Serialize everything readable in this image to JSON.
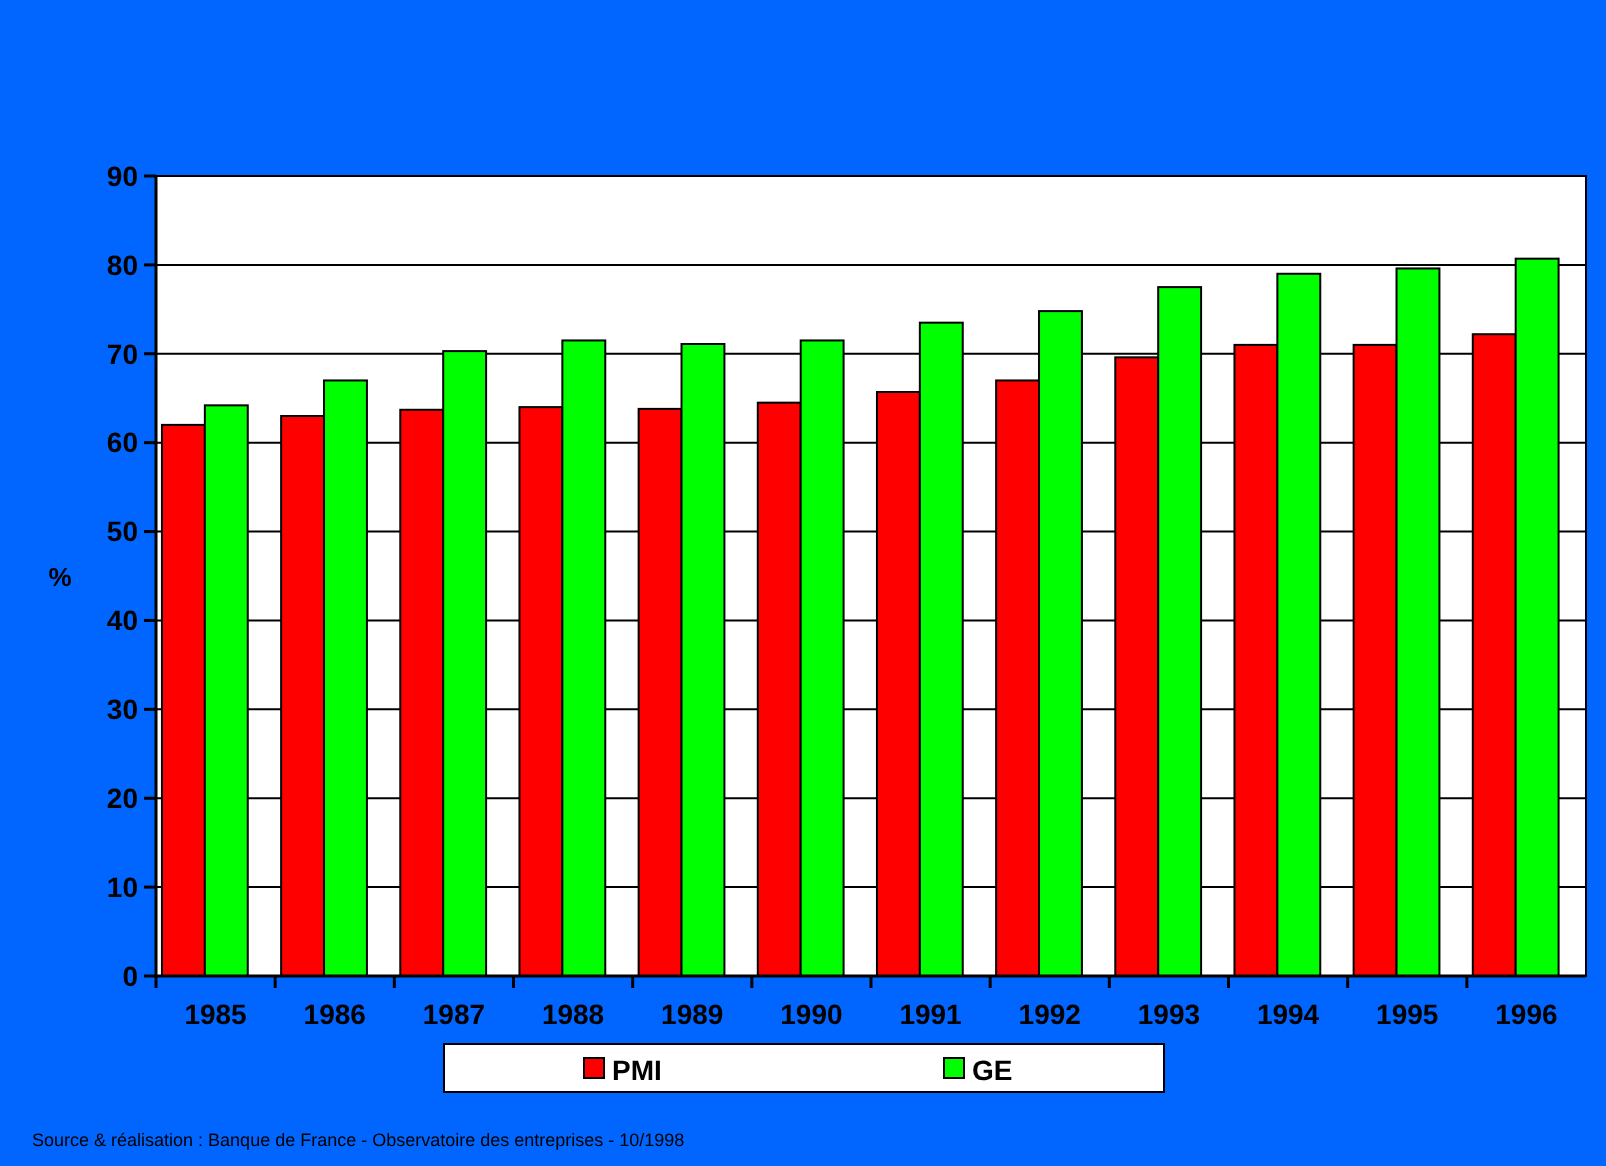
{
  "chart_data": {
    "type": "bar",
    "ylabel": "%",
    "categories": [
      "1985",
      "1986",
      "1987",
      "1988",
      "1989",
      "1990",
      "1991",
      "1992",
      "1993",
      "1994",
      "1995",
      "1996"
    ],
    "series": [
      {
        "name": "PMI",
        "color": "#ff0000",
        "values": [
          62,
          63,
          63.7,
          64,
          63.8,
          64.5,
          65.7,
          67,
          69.6,
          71,
          71,
          72.2
        ]
      },
      {
        "name": "GE",
        "color": "#00ff00",
        "values": [
          64.2,
          67,
          70.3,
          71.5,
          71.1,
          71.5,
          73.5,
          74.8,
          77.5,
          79,
          79.6,
          80.7
        ]
      }
    ],
    "ylim": [
      0,
      90
    ],
    "yticks": [
      0,
      10,
      20,
      30,
      40,
      50,
      60,
      70,
      80,
      90
    ],
    "grid": "y",
    "legend": "bottom",
    "annotations": [
      "Source & réalisation : Banque de France - Observatoire des entreprises - 10/1998"
    ]
  }
}
